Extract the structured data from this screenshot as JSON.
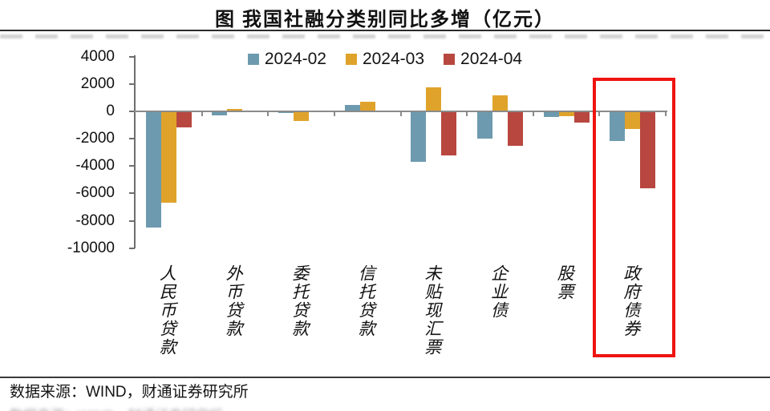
{
  "title": "图 我国社融分类别同比多增（亿元）",
  "footer": {
    "source": "数据来源：WIND，财通证券研究所"
  },
  "chart_data": {
    "type": "bar",
    "title": "图 我国社融分类别同比多增（亿元）",
    "unit": "亿元",
    "categories": [
      "人民币贷款",
      "外币贷款",
      "委托贷款",
      "信托贷款",
      "未贴现汇票",
      "企业债",
      "股票",
      "政府债券"
    ],
    "series": [
      {
        "name": "2024-02",
        "color": "#6d9aae",
        "values": [
          -8500,
          -300,
          -100,
          450,
          -3700,
          -2000,
          -400,
          -2150
        ]
      },
      {
        "name": "2024-03",
        "color": "#dfa32b",
        "values": [
          -6700,
          150,
          -700,
          700,
          1750,
          1150,
          -350,
          -1300
        ]
      },
      {
        "name": "2024-04",
        "color": "#b84740",
        "values": [
          -1200,
          0,
          0,
          0,
          -3200,
          -2500,
          -800,
          -5600
        ]
      }
    ],
    "ylim": [
      -10000,
      4000
    ],
    "yticks": [
      4000,
      2000,
      0,
      -2000,
      -4000,
      -6000,
      -8000,
      -10000
    ],
    "legend_position": "top",
    "grid": false,
    "highlight": {
      "category": "政府债券",
      "color": "#ee1411"
    }
  }
}
